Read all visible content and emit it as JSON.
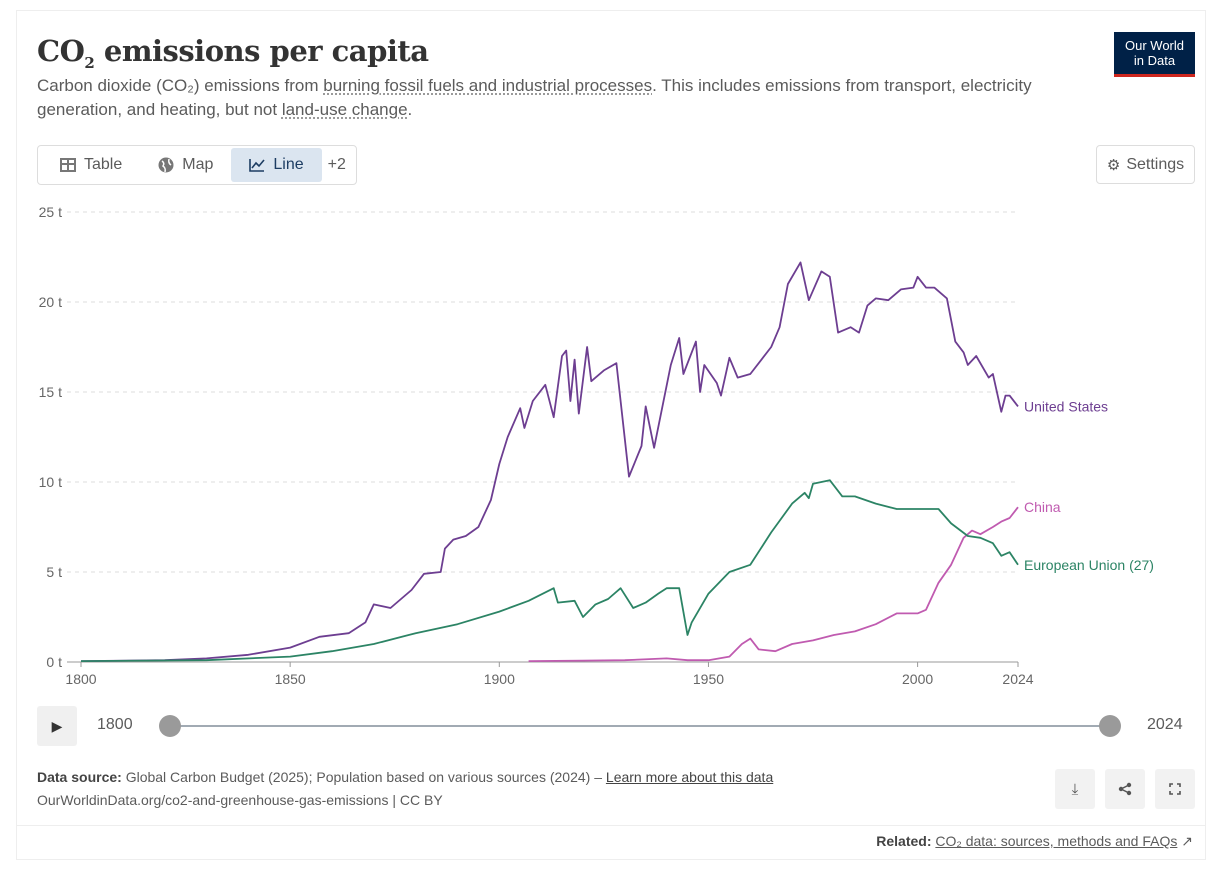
{
  "header": {
    "title": "CO",
    "title_sub": "2",
    "title_rest": " emissions per capita",
    "subtitle_pre": "Carbon dioxide (CO₂) emissions from ",
    "subtitle_link1": "burning fossil fuels and industrial processes",
    "subtitle_mid": ". This includes emissions from transport, electricity generation, and heating, but not ",
    "subtitle_link2": "land-use change",
    "subtitle_end": ".",
    "logo_line1": "Our World",
    "logo_line2": "in Data"
  },
  "tabs": [
    {
      "label": "Table",
      "icon": "table-icon"
    },
    {
      "label": "Map",
      "icon": "globe-icon"
    },
    {
      "label": "Line",
      "icon": "line-chart-icon",
      "active": true
    }
  ],
  "tabs_more": "+2",
  "settings_label": "Settings",
  "timeline": {
    "start": "1800",
    "end": "2024"
  },
  "footer": {
    "source_label": "Data source:",
    "source_text": " Global Carbon Budget (2025); Population based on various sources (2024) – ",
    "learn_more": "Learn more about this data",
    "url": "OurWorldinData.org/co2-and-greenhouse-gas-emissions | CC BY",
    "related_label": "Related:",
    "related_link": "CO₂ data: sources, methods and FAQs"
  },
  "colors": {
    "us": "#6d3e91",
    "china": "#c05bb0",
    "eu": "#2c8465"
  },
  "chart_data": {
    "type": "line",
    "title": "CO₂ emissions per capita",
    "ylabel": "",
    "xlabel": "",
    "xlim": [
      1800,
      2024
    ],
    "ylim": [
      0,
      25
    ],
    "yticks": [
      {
        "v": 0,
        "label": "0 t"
      },
      {
        "v": 5,
        "label": "5 t"
      },
      {
        "v": 10,
        "label": "10 t"
      },
      {
        "v": 15,
        "label": "15 t"
      },
      {
        "v": 20,
        "label": "20 t"
      },
      {
        "v": 25,
        "label": "25 t"
      }
    ],
    "xticks": [
      {
        "v": 1800,
        "label": "1800"
      },
      {
        "v": 1850,
        "label": "1850"
      },
      {
        "v": 1900,
        "label": "1900"
      },
      {
        "v": 1950,
        "label": "1950"
      },
      {
        "v": 2000,
        "label": "2000"
      },
      {
        "v": 2024,
        "label": "2024"
      }
    ],
    "series": [
      {
        "name": "United States",
        "key": "us",
        "points": [
          [
            1800,
            0.05
          ],
          [
            1820,
            0.1
          ],
          [
            1830,
            0.2
          ],
          [
            1840,
            0.4
          ],
          [
            1850,
            0.8
          ],
          [
            1857,
            1.4
          ],
          [
            1864,
            1.6
          ],
          [
            1868,
            2.2
          ],
          [
            1870,
            3.2
          ],
          [
            1874,
            3.0
          ],
          [
            1879,
            4.0
          ],
          [
            1882,
            4.9
          ],
          [
            1886,
            5.0
          ],
          [
            1887,
            6.3
          ],
          [
            1889,
            6.8
          ],
          [
            1892,
            7.0
          ],
          [
            1895,
            7.5
          ],
          [
            1898,
            9.0
          ],
          [
            1899,
            10.0
          ],
          [
            1900,
            11.0
          ],
          [
            1902,
            12.5
          ],
          [
            1905,
            14.1
          ],
          [
            1906,
            13.0
          ],
          [
            1908,
            14.5
          ],
          [
            1911,
            15.4
          ],
          [
            1913,
            13.6
          ],
          [
            1915,
            17.0
          ],
          [
            1916,
            17.3
          ],
          [
            1917,
            14.5
          ],
          [
            1918,
            16.8
          ],
          [
            1919,
            13.8
          ],
          [
            1921,
            17.5
          ],
          [
            1922,
            15.6
          ],
          [
            1925,
            16.2
          ],
          [
            1928,
            16.6
          ],
          [
            1931,
            10.3
          ],
          [
            1934,
            12.0
          ],
          [
            1935,
            14.2
          ],
          [
            1937,
            11.9
          ],
          [
            1941,
            16.5
          ],
          [
            1943,
            18.0
          ],
          [
            1944,
            16.0
          ],
          [
            1947,
            17.8
          ],
          [
            1948,
            15.0
          ],
          [
            1949,
            16.5
          ],
          [
            1952,
            15.5
          ],
          [
            1953,
            14.8
          ],
          [
            1955,
            16.9
          ],
          [
            1957,
            15.8
          ],
          [
            1960,
            16.0
          ],
          [
            1965,
            17.5
          ],
          [
            1967,
            18.6
          ],
          [
            1969,
            21.0
          ],
          [
            1972,
            22.2
          ],
          [
            1974,
            20.1
          ],
          [
            1977,
            21.7
          ],
          [
            1979,
            21.4
          ],
          [
            1981,
            18.3
          ],
          [
            1984,
            18.6
          ],
          [
            1986,
            18.3
          ],
          [
            1988,
            19.8
          ],
          [
            1990,
            20.2
          ],
          [
            1993,
            20.1
          ],
          [
            1996,
            20.7
          ],
          [
            1999,
            20.8
          ],
          [
            2000,
            21.4
          ],
          [
            2002,
            20.8
          ],
          [
            2004,
            20.8
          ],
          [
            2007,
            20.2
          ],
          [
            2009,
            17.8
          ],
          [
            2011,
            17.2
          ],
          [
            2012,
            16.5
          ],
          [
            2014,
            17.0
          ],
          [
            2017,
            15.8
          ],
          [
            2018,
            16.0
          ],
          [
            2020,
            13.9
          ],
          [
            2021,
            14.8
          ],
          [
            2022,
            14.8
          ],
          [
            2024,
            14.2
          ]
        ]
      },
      {
        "name": "China",
        "key": "china",
        "points": [
          [
            1907,
            0.05
          ],
          [
            1920,
            0.08
          ],
          [
            1930,
            0.1
          ],
          [
            1940,
            0.2
          ],
          [
            1945,
            0.1
          ],
          [
            1950,
            0.1
          ],
          [
            1955,
            0.3
          ],
          [
            1958,
            1.0
          ],
          [
            1960,
            1.3
          ],
          [
            1962,
            0.7
          ],
          [
            1966,
            0.6
          ],
          [
            1970,
            1.0
          ],
          [
            1975,
            1.2
          ],
          [
            1980,
            1.5
          ],
          [
            1985,
            1.7
          ],
          [
            1990,
            2.1
          ],
          [
            1995,
            2.7
          ],
          [
            1998,
            2.7
          ],
          [
            2000,
            2.7
          ],
          [
            2002,
            2.9
          ],
          [
            2005,
            4.4
          ],
          [
            2008,
            5.4
          ],
          [
            2011,
            6.9
          ],
          [
            2013,
            7.3
          ],
          [
            2015,
            7.1
          ],
          [
            2018,
            7.5
          ],
          [
            2020,
            7.8
          ],
          [
            2022,
            8.0
          ],
          [
            2024,
            8.6
          ]
        ]
      },
      {
        "name": "European Union (27)",
        "key": "eu",
        "points": [
          [
            1800,
            0.05
          ],
          [
            1830,
            0.1
          ],
          [
            1850,
            0.3
          ],
          [
            1860,
            0.6
          ],
          [
            1870,
            1.0
          ],
          [
            1880,
            1.6
          ],
          [
            1890,
            2.1
          ],
          [
            1900,
            2.8
          ],
          [
            1907,
            3.4
          ],
          [
            1913,
            4.1
          ],
          [
            1914,
            3.3
          ],
          [
            1918,
            3.4
          ],
          [
            1920,
            2.5
          ],
          [
            1923,
            3.2
          ],
          [
            1926,
            3.5
          ],
          [
            1929,
            4.1
          ],
          [
            1932,
            3.0
          ],
          [
            1935,
            3.3
          ],
          [
            1938,
            3.8
          ],
          [
            1940,
            4.1
          ],
          [
            1943,
            4.1
          ],
          [
            1945,
            1.5
          ],
          [
            1946,
            2.2
          ],
          [
            1950,
            3.8
          ],
          [
            1955,
            5.0
          ],
          [
            1960,
            5.4
          ],
          [
            1965,
            7.2
          ],
          [
            1970,
            8.8
          ],
          [
            1973,
            9.4
          ],
          [
            1974,
            9.1
          ],
          [
            1975,
            9.9
          ],
          [
            1979,
            10.1
          ],
          [
            1982,
            9.2
          ],
          [
            1985,
            9.2
          ],
          [
            1990,
            8.8
          ],
          [
            1995,
            8.5
          ],
          [
            2000,
            8.5
          ],
          [
            2005,
            8.5
          ],
          [
            2008,
            7.7
          ],
          [
            2012,
            7.0
          ],
          [
            2015,
            6.9
          ],
          [
            2018,
            6.6
          ],
          [
            2020,
            5.9
          ],
          [
            2022,
            6.1
          ],
          [
            2024,
            5.4
          ]
        ]
      }
    ]
  }
}
